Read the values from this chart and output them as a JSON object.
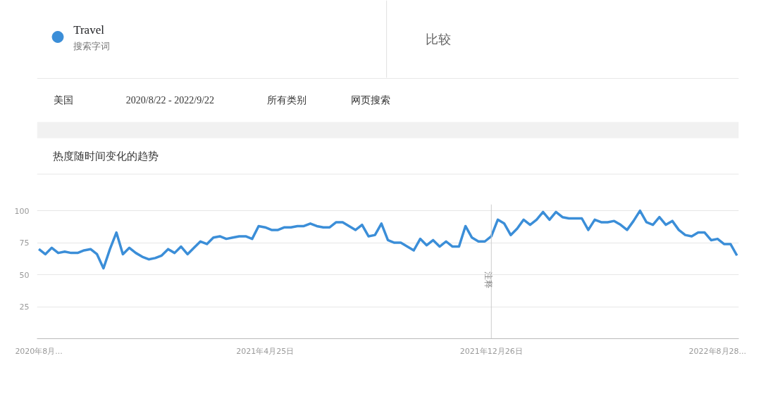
{
  "chart_data": {
    "type": "line",
    "title": "热度随时间变化的趋势",
    "annotations": [
      "搜索字词",
      "比较",
      "美国",
      "2020/8/22 - 2022/9/22",
      "所有类别",
      "网页搜索"
    ],
    "x": [
      "2020-08-23",
      "2020-08-30",
      "2020-09-06",
      "2020-09-13",
      "2020-09-20",
      "2020-09-27",
      "2020-10-04",
      "2020-10-11",
      "2020-10-18",
      "2020-10-25",
      "2020-11-01",
      "2020-11-08",
      "2020-11-15",
      "2020-11-22",
      "2020-11-29",
      "2020-12-06",
      "2020-12-13",
      "2020-12-20",
      "2020-12-27",
      "2021-01-03",
      "2021-01-10",
      "2021-01-17",
      "2021-01-24",
      "2021-01-31",
      "2021-02-07",
      "2021-02-14",
      "2021-02-21",
      "2021-02-28",
      "2021-03-07",
      "2021-03-14",
      "2021-03-21",
      "2021-03-28",
      "2021-04-04",
      "2021-04-11",
      "2021-04-18",
      "2021-04-25",
      "2021-05-02",
      "2021-05-09",
      "2021-05-16",
      "2021-05-23",
      "2021-05-30",
      "2021-06-06",
      "2021-06-13",
      "2021-06-20",
      "2021-06-27",
      "2021-07-04",
      "2021-07-11",
      "2021-07-18",
      "2021-07-25",
      "2021-08-01",
      "2021-08-08",
      "2021-08-15",
      "2021-08-22",
      "2021-08-29",
      "2021-09-05",
      "2021-09-12",
      "2021-09-19",
      "2021-09-26",
      "2021-10-03",
      "2021-10-10",
      "2021-10-17",
      "2021-10-24",
      "2021-10-31",
      "2021-11-07",
      "2021-11-14",
      "2021-11-21",
      "2021-11-28",
      "2021-12-05",
      "2021-12-12",
      "2021-12-19",
      "2021-12-26",
      "2022-01-02",
      "2022-01-09",
      "2022-01-16",
      "2022-01-23",
      "2022-01-30",
      "2022-02-06",
      "2022-02-13",
      "2022-02-20",
      "2022-02-27",
      "2022-03-06",
      "2022-03-13",
      "2022-03-20",
      "2022-03-27",
      "2022-04-03",
      "2022-04-10",
      "2022-04-17",
      "2022-04-24",
      "2022-05-01",
      "2022-05-08",
      "2022-05-15",
      "2022-05-22",
      "2022-05-29",
      "2022-06-05",
      "2022-06-12",
      "2022-06-19",
      "2022-06-26",
      "2022-07-03",
      "2022-07-10",
      "2022-07-17",
      "2022-07-24",
      "2022-07-31",
      "2022-08-07",
      "2022-08-14",
      "2022-08-21",
      "2022-08-28",
      "2022-09-04",
      "2022-09-11",
      "2022-09-18"
    ],
    "series": [
      {
        "name": "Travel",
        "color": "#3b8ed8",
        "values": [
          70,
          66,
          71,
          67,
          68,
          67,
          67,
          69,
          70,
          66,
          55,
          70,
          83,
          66,
          71,
          67,
          64,
          62,
          63,
          65,
          70,
          67,
          72,
          66,
          71,
          76,
          74,
          79,
          80,
          78,
          79,
          80,
          80,
          78,
          88,
          87,
          85,
          85,
          87,
          87,
          88,
          88,
          90,
          88,
          87,
          87,
          91,
          91,
          88,
          85,
          89,
          80,
          81,
          90,
          77,
          75,
          75,
          72,
          69,
          78,
          73,
          77,
          72,
          76,
          72,
          72,
          88,
          79,
          76,
          76,
          80,
          93,
          90,
          81,
          86,
          93,
          89,
          93,
          99,
          93,
          99,
          95,
          94,
          94,
          94,
          85,
          93,
          91,
          91,
          92,
          89,
          85,
          92,
          100,
          91,
          89,
          95,
          89,
          92,
          85,
          81,
          80,
          83,
          83,
          77,
          78,
          74,
          74,
          65
        ]
      }
    ],
    "xlim": [
      "2020-08-21",
      "2022-09-20"
    ],
    "ylim": [
      0,
      105
    ],
    "xticks": [
      {
        "value": "2020-08-23",
        "label": "2020年8月..."
      },
      {
        "value": "2021-04-25",
        "label": "2021年4月25日"
      },
      {
        "value": "2021-12-26",
        "label": "2021年12月26日"
      },
      {
        "value": "2022-08-28",
        "label": "2022年8月28..."
      }
    ],
    "yticks": [
      25,
      50,
      75,
      100
    ],
    "grid": "y",
    "legend": "top left",
    "ref_lines": [
      {
        "axis": "x",
        "value": "2021-12-26",
        "label": "注释",
        "color": "#cccccc"
      }
    ]
  }
}
